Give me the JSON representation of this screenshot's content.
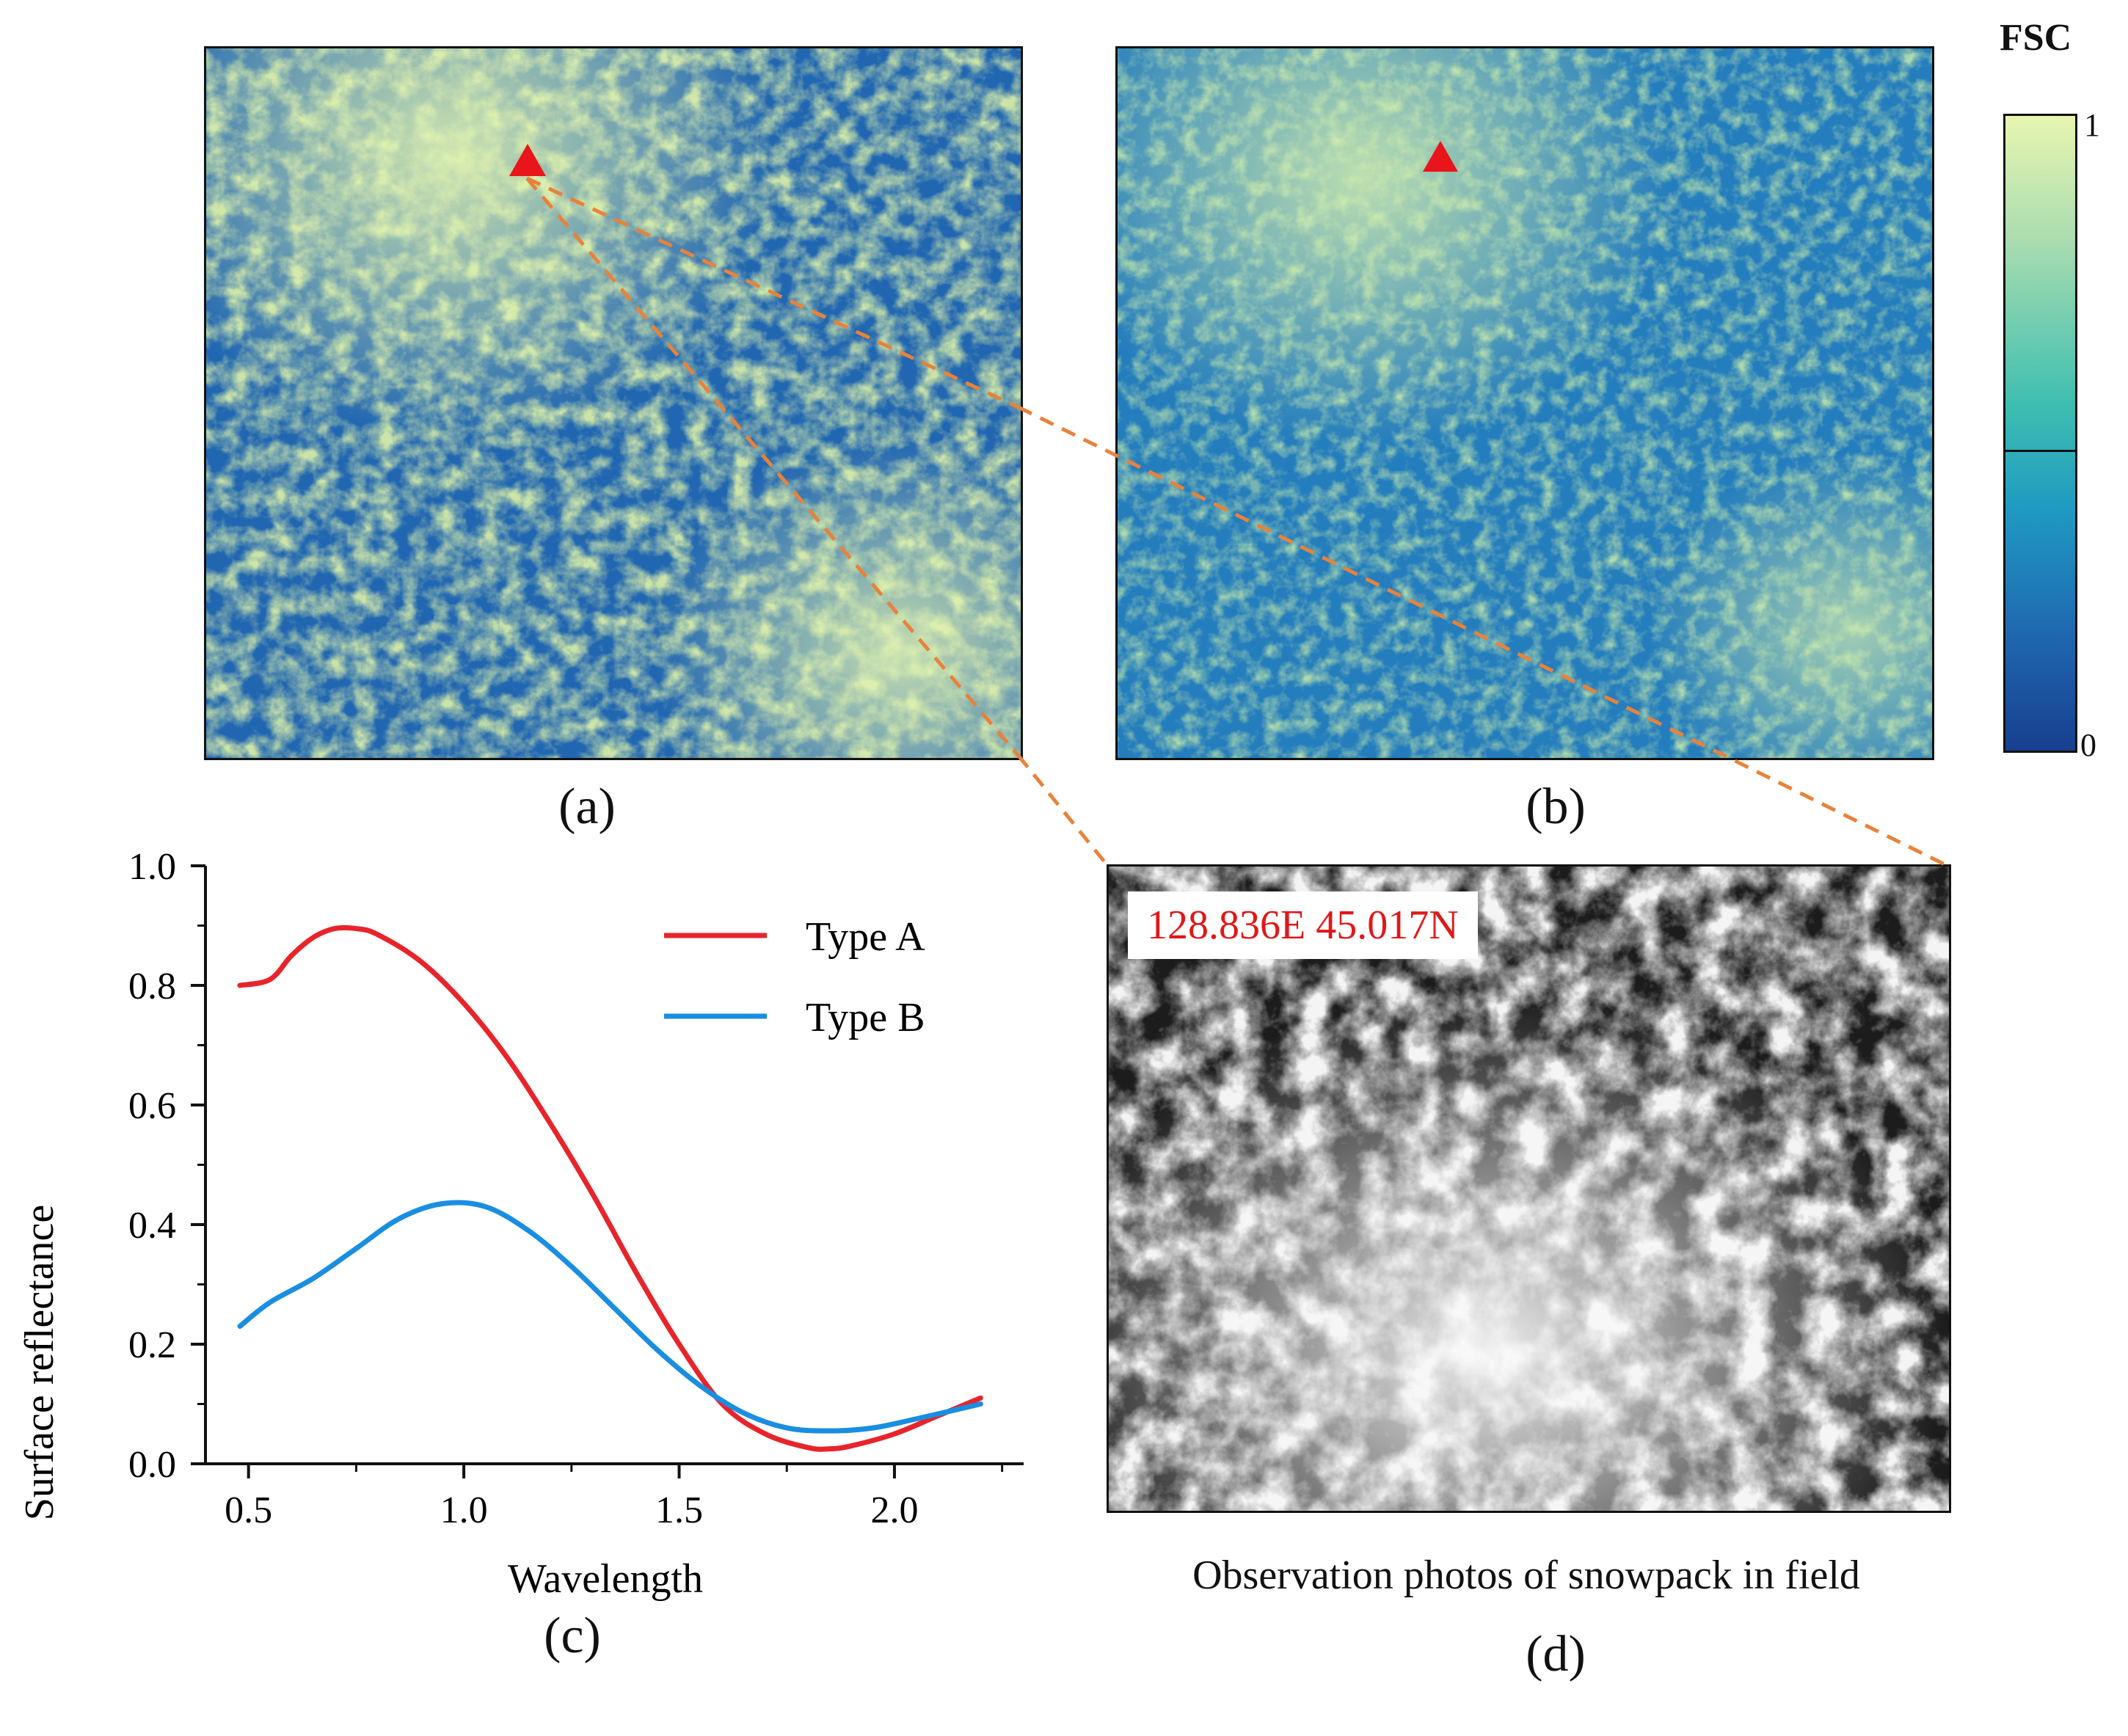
{
  "maps": {
    "panel_a_caption": "(a)",
    "panel_b_caption": "(b)",
    "site_marker_icon": "red-triangle-icon"
  },
  "colorbar": {
    "title": "FSC",
    "max_label": "1",
    "min_label": "0",
    "colors": [
      "#e8f5b0",
      "#a8dcb0",
      "#3fbfb0",
      "#1f9ac2",
      "#1f67b0",
      "#173f8f"
    ]
  },
  "photo": {
    "coordinate_label": "128.836E 45.017N",
    "caption": "Observation photos of snowpack in field",
    "panel_caption": "(d)"
  },
  "chart_data": {
    "type": "line",
    "panel_caption": "(c)",
    "xlabel": "Wavelength",
    "ylabel": "Surface reflectance",
    "xlim": [
      0.4,
      2.3
    ],
    "ylim": [
      0.0,
      1.0
    ],
    "xticks": [
      "0.5",
      "1.0",
      "1.5",
      "2.0"
    ],
    "xtick_values": [
      0.5,
      1.0,
      1.5,
      2.0
    ],
    "yticks": [
      "0.0",
      "0.2",
      "0.4",
      "0.6",
      "0.8",
      "1.0"
    ],
    "ytick_values": [
      0.0,
      0.2,
      0.4,
      0.6,
      0.8,
      1.0
    ],
    "legend_position": "top-right",
    "series": [
      {
        "name": "Type A",
        "color": "#e8242b",
        "x": [
          0.48,
          0.55,
          0.6,
          0.65,
          0.7,
          0.75,
          0.8,
          0.9,
          1.0,
          1.1,
          1.2,
          1.3,
          1.4,
          1.5,
          1.6,
          1.7,
          1.8,
          1.85,
          1.9,
          2.0,
          2.1,
          2.2
        ],
        "values": [
          0.8,
          0.81,
          0.85,
          0.88,
          0.895,
          0.895,
          0.885,
          0.84,
          0.77,
          0.68,
          0.57,
          0.45,
          0.32,
          0.2,
          0.1,
          0.05,
          0.027,
          0.025,
          0.03,
          0.05,
          0.08,
          0.11
        ]
      },
      {
        "name": "Type B",
        "color": "#1a8ee0",
        "x": [
          0.48,
          0.55,
          0.65,
          0.75,
          0.85,
          0.95,
          1.05,
          1.15,
          1.25,
          1.35,
          1.45,
          1.55,
          1.65,
          1.75,
          1.85,
          1.95,
          2.05,
          2.2
        ],
        "values": [
          0.23,
          0.27,
          0.31,
          0.36,
          0.41,
          0.435,
          0.43,
          0.39,
          0.33,
          0.26,
          0.19,
          0.13,
          0.085,
          0.06,
          0.055,
          0.06,
          0.075,
          0.1
        ]
      }
    ]
  }
}
